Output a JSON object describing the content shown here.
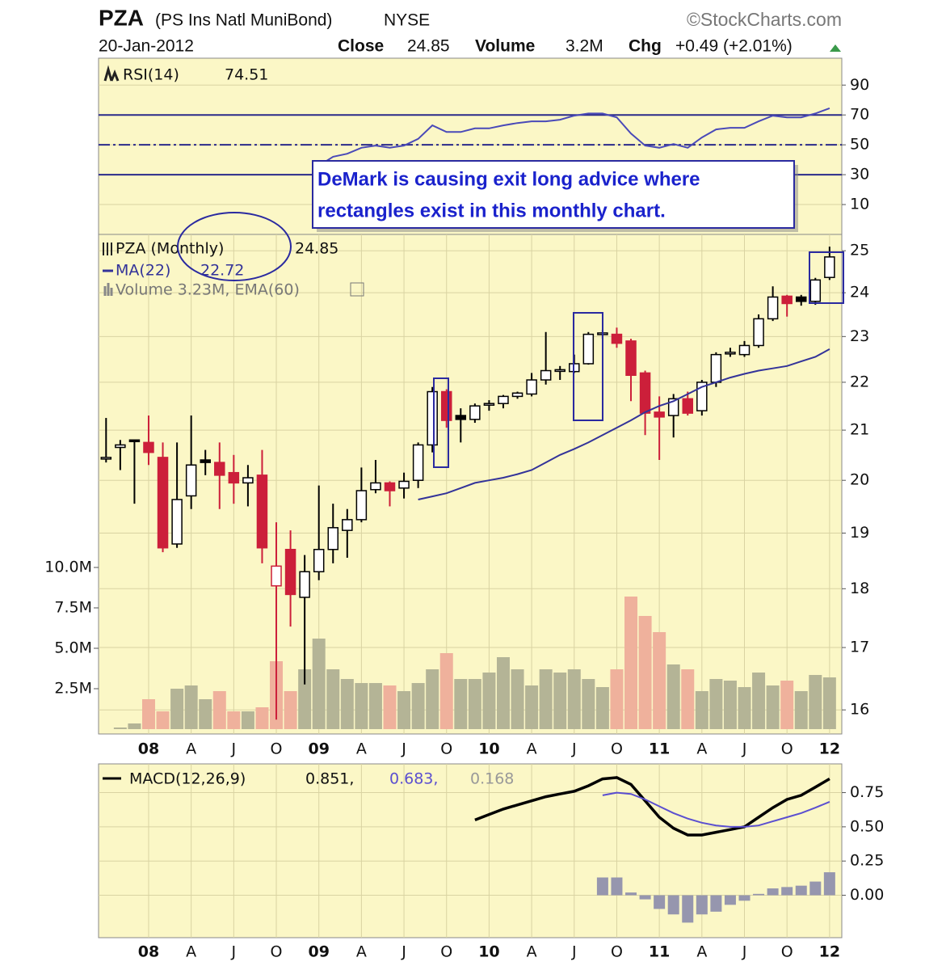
{
  "header": {
    "symbol": "PZA",
    "name": "(PS Ins Natl MuniBond)",
    "exchange": "NYSE",
    "source": "©StockCharts.com",
    "date": "20-Jan-2012",
    "close_label": "Close",
    "close": 24.85,
    "volume_label": "Volume",
    "volume": "3.2M",
    "chg_label": "Chg",
    "chg": "+0.49 (+2.01%)"
  },
  "chart_data": [
    {
      "type": "line",
      "ylim": [
        -10,
        108
      ],
      "yticks": [
        10,
        30,
        50,
        70,
        90
      ],
      "grid": true,
      "levels": [
        {
          "value": 70,
          "style": "solid"
        },
        {
          "value": 50,
          "style": "dashdot"
        },
        {
          "value": 30,
          "style": "solid"
        }
      ],
      "series": [
        {
          "name": "RSI(14)",
          "color": "#4a4ab8",
          "last_value": 74.51,
          "values": [
            null,
            null,
            null,
            null,
            null,
            null,
            null,
            null,
            null,
            null,
            null,
            null,
            null,
            null,
            null,
            36,
            42,
            44,
            48,
            49.5,
            48,
            49.5,
            54,
            63,
            58.6,
            58.6,
            61,
            61,
            63,
            64.6,
            65.7,
            65.7,
            66.8,
            69.5,
            71,
            71,
            68.4,
            57.6,
            49.5,
            48,
            50.5,
            48,
            54.9,
            60.3,
            61.4,
            61.4,
            65.7,
            69.5,
            68.4,
            68.4,
            71,
            74.51
          ]
        }
      ],
      "annotation": [
        "DeMark is causing exit long advice where",
        "rectangles exist in this monthly chart."
      ]
    },
    {
      "type": "candlestick",
      "legend": "PZA (Monthly)",
      "last_close": 24.85,
      "yscale": "log",
      "grid": true,
      "up_color": "#000000",
      "down_color": "#cc1f3a",
      "categories": [
        null,
        null,
        null,
        "08",
        null,
        null,
        "A",
        null,
        null,
        "J",
        null,
        null,
        "O",
        null,
        null,
        "09",
        null,
        null,
        "A",
        null,
        null,
        "J",
        null,
        null,
        "O",
        null,
        null,
        "10",
        null,
        null,
        "A",
        null,
        null,
        "J",
        null,
        null,
        "O",
        null,
        null,
        "11",
        null,
        null,
        "A",
        null,
        null,
        "J",
        null,
        null,
        "O",
        null,
        null,
        "12"
      ],
      "open": [
        20.45,
        20.65,
        20.8,
        20.75,
        20.45,
        18.8,
        19.7,
        20.4,
        20.35,
        20.15,
        19.95,
        20.1,
        18.05,
        18.7,
        17.85,
        18.3,
        18.7,
        19.05,
        19.25,
        19.82,
        19.95,
        19.85,
        20.0,
        20.7,
        21.8,
        21.3,
        21.22,
        21.52,
        21.55,
        21.7,
        21.75,
        22.05,
        22.25,
        22.23,
        22.4,
        23.05,
        23.05,
        22.9,
        22.2,
        21.37,
        21.3,
        21.65,
        21.4,
        22.0,
        22.62,
        22.6,
        22.8,
        23.4,
        23.92,
        23.9,
        23.8,
        24.36
      ],
      "high": [
        21.25,
        20.8,
        20.8,
        21.3,
        20.75,
        20.75,
        21.3,
        20.6,
        20.75,
        20.5,
        20.3,
        20.6,
        19.2,
        19.05,
        18.6,
        19.9,
        19.55,
        19.45,
        20.25,
        20.4,
        19.98,
        20.15,
        20.75,
        21.9,
        21.85,
        21.45,
        21.55,
        21.62,
        21.73,
        21.8,
        22.2,
        23.1,
        22.35,
        22.6,
        23.1,
        23.15,
        23.2,
        22.95,
        22.25,
        21.7,
        21.75,
        21.8,
        22.05,
        22.65,
        22.75,
        22.9,
        23.5,
        24.15,
        23.95,
        23.95,
        24.35,
        25.1
      ],
      "low": [
        20.35,
        20.2,
        19.55,
        20.3,
        18.65,
        18.73,
        19.45,
        20.1,
        19.45,
        19.55,
        19.5,
        18.45,
        15.85,
        17.35,
        16.4,
        18.15,
        18.45,
        18.55,
        19.2,
        19.75,
        19.5,
        19.65,
        19.85,
        20.55,
        21.05,
        20.75,
        21.15,
        21.4,
        21.45,
        21.65,
        21.7,
        21.95,
        22.05,
        22.2,
        22.38,
        22.95,
        22.75,
        21.6,
        20.9,
        20.4,
        20.85,
        21.3,
        21.3,
        21.9,
        22.55,
        22.55,
        22.75,
        23.35,
        23.45,
        23.7,
        23.72,
        24.3
      ],
      "close": [
        20.45,
        20.7,
        20.78,
        20.55,
        18.73,
        19.63,
        20.3,
        20.35,
        20.1,
        19.95,
        20.05,
        18.73,
        18.4,
        17.9,
        18.3,
        18.7,
        19.1,
        19.25,
        19.8,
        19.95,
        19.8,
        19.98,
        20.7,
        21.8,
        21.2,
        21.22,
        21.5,
        21.55,
        21.7,
        21.77,
        22.05,
        22.25,
        22.27,
        22.4,
        23.05,
        23.08,
        22.85,
        22.15,
        21.35,
        21.27,
        21.65,
        21.35,
        22.0,
        22.6,
        22.65,
        22.8,
        23.4,
        23.9,
        23.75,
        23.8,
        24.3,
        24.85
      ],
      "ylim": [
        15.63,
        25.4
      ],
      "yticks": [
        16,
        17,
        18,
        19,
        20,
        21,
        22,
        23,
        24,
        25
      ],
      "series": [
        {
          "name": "MA(22)",
          "color": "#333399",
          "last_value": 22.72,
          "values": [
            null,
            null,
            null,
            null,
            null,
            null,
            null,
            null,
            null,
            null,
            null,
            null,
            null,
            null,
            null,
            null,
            null,
            null,
            null,
            null,
            null,
            null,
            19.63,
            19.69,
            19.75,
            19.85,
            19.95,
            20.0,
            20.05,
            20.12,
            20.2,
            20.35,
            20.5,
            20.62,
            20.75,
            20.9,
            21.05,
            21.2,
            21.37,
            21.5,
            21.6,
            21.75,
            21.9,
            22.0,
            22.1,
            22.18,
            22.25,
            22.3,
            22.35,
            22.45,
            22.55,
            22.72
          ]
        }
      ],
      "volume": {
        "name": "Volume 3.23M, EMA(60)",
        "up_color": "#b4b496",
        "down_color": "#efb19c",
        "ylim": [
          -0.3,
          30.6
        ],
        "yticks": [
          {
            "value": 2.5,
            "label": "2.5M"
          },
          {
            "value": 5,
            "label": "5.0M"
          },
          {
            "value": 7.5,
            "label": "7.5M"
          },
          {
            "value": 10,
            "label": "10.0M"
          }
        ],
        "values": [
          null,
          0.1,
          0.35,
          1.85,
          1.1,
          2.5,
          2.7,
          1.85,
          2.35,
          1.1,
          1.1,
          1.35,
          4.2,
          2.35,
          3.7,
          5.6,
          3.7,
          3.1,
          2.85,
          2.85,
          2.7,
          2.35,
          2.85,
          3.7,
          4.7,
          3.1,
          3.1,
          3.5,
          4.45,
          3.7,
          2.7,
          3.7,
          3.5,
          3.7,
          3.1,
          2.6,
          3.7,
          8.2,
          7.0,
          6.0,
          4.0,
          3.7,
          2.35,
          3.1,
          3.0,
          2.6,
          3.5,
          2.7,
          3.0,
          2.35,
          3.35,
          3.2
        ]
      }
    },
    {
      "type": "macd",
      "grid": true,
      "categories": [
        null,
        null,
        null,
        "08",
        null,
        null,
        "A",
        null,
        null,
        "J",
        null,
        null,
        "O",
        null,
        null,
        "09",
        null,
        null,
        "A",
        null,
        null,
        "J",
        null,
        null,
        "O",
        null,
        null,
        "10",
        null,
        null,
        "A",
        null,
        null,
        "J",
        null,
        null,
        "O",
        null,
        null,
        "11",
        null,
        null,
        "A",
        null,
        null,
        "J",
        null,
        null,
        "O",
        null,
        null,
        "12"
      ],
      "ylim": [
        -0.31,
        0.96
      ],
      "yticks": [
        {
          "value": 0,
          "label": "0.00"
        },
        0.25,
        {
          "value": 0.5,
          "label": "0.50"
        },
        0.75
      ],
      "series": [
        {
          "name": "MACD(12,26,9)",
          "color": "#000000",
          "value_label": "0.851,",
          "values": [
            null,
            null,
            null,
            null,
            null,
            null,
            null,
            null,
            null,
            null,
            null,
            null,
            null,
            null,
            null,
            null,
            null,
            null,
            null,
            null,
            null,
            null,
            null,
            null,
            null,
            null,
            0.55,
            0.59,
            0.63,
            0.66,
            0.69,
            0.72,
            0.74,
            0.76,
            0.8,
            0.85,
            0.86,
            0.81,
            0.69,
            0.57,
            0.49,
            0.44,
            0.44,
            0.46,
            0.48,
            0.5,
            0.57,
            0.64,
            0.7,
            0.73,
            0.79,
            0.851
          ]
        },
        {
          "color": "#5b4fd0",
          "value_label": "0.683,",
          "values": [
            null,
            null,
            null,
            null,
            null,
            null,
            null,
            null,
            null,
            null,
            null,
            null,
            null,
            null,
            null,
            null,
            null,
            null,
            null,
            null,
            null,
            null,
            null,
            null,
            null,
            null,
            null,
            null,
            null,
            null,
            null,
            null,
            null,
            null,
            null,
            0.73,
            0.75,
            0.74,
            0.7,
            0.65,
            0.6,
            0.56,
            0.53,
            0.51,
            0.5,
            0.5,
            0.51,
            0.54,
            0.57,
            0.6,
            0.64,
            0.683
          ]
        },
        {
          "type": "bar",
          "color": "#9696ae",
          "value_label": "0.168",
          "values": [
            null,
            null,
            null,
            null,
            null,
            null,
            null,
            null,
            null,
            null,
            null,
            null,
            null,
            null,
            null,
            null,
            null,
            null,
            null,
            null,
            null,
            null,
            null,
            null,
            null,
            null,
            null,
            null,
            null,
            null,
            null,
            null,
            null,
            null,
            null,
            0.13,
            0.13,
            0.02,
            -0.03,
            -0.1,
            -0.14,
            -0.2,
            -0.14,
            -0.12,
            -0.07,
            -0.04,
            0.01,
            0.05,
            0.06,
            0.07,
            0.1,
            0.168
          ]
        }
      ]
    }
  ]
}
